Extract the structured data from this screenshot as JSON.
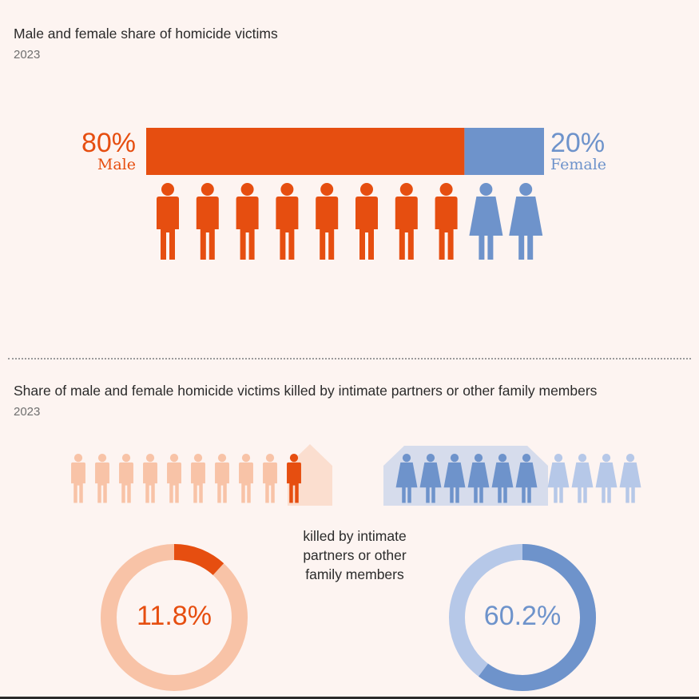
{
  "chart_data": [
    {
      "type": "bar",
      "title": "Male and female share of homicide victims",
      "subtitle": "2023",
      "series": [
        {
          "name": "Male",
          "value": 80,
          "label": "80%",
          "color": "#e64e10"
        },
        {
          "name": "Female",
          "value": 20,
          "label": "20%",
          "color": "#6e93cb"
        }
      ],
      "pictogram": {
        "male_icons": 8,
        "female_icons": 2
      }
    },
    {
      "type": "pie",
      "title": "Share of male and female homicide victims killed by intimate partners or other family members",
      "subtitle": "2023",
      "annotation": "killed by intimate partners or other family members",
      "series": [
        {
          "name": "Male",
          "value": 11.8,
          "label": "11.8%",
          "color": "#e64e10",
          "rest_color": "#f8c3a7"
        },
        {
          "name": "Female",
          "value": 60.2,
          "label": "60.2%",
          "color": "#6e93cb",
          "rest_color": "#b6c8e8"
        }
      ],
      "pictogram": {
        "male_total": 10,
        "male_highlighted": 1,
        "female_total": 10,
        "female_highlighted": 6
      }
    }
  ],
  "text": {
    "title1": "Male and female share of homicide victims",
    "subtitle1": "2023",
    "male_pct": "80%",
    "male_label": "Male",
    "female_pct": "20%",
    "female_label": "Female",
    "title2": "Share of male and female homicide victims killed by intimate partners or other family members",
    "subtitle2": "2023",
    "note_line1": "killed by intimate",
    "note_line2": "partners or other",
    "note_line3": "family members",
    "male_donut": "11.8%",
    "female_donut": "60.2%"
  }
}
